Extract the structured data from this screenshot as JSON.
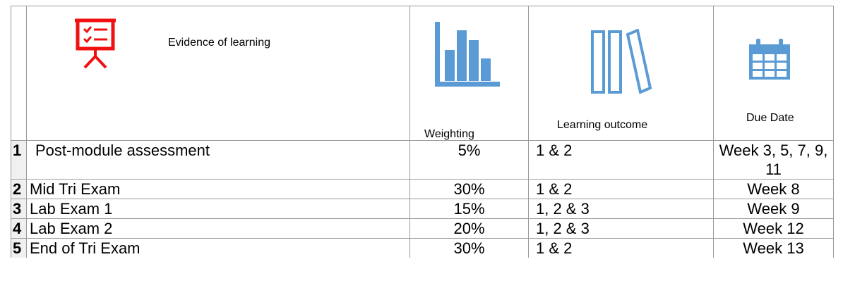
{
  "header": {
    "evidence": "Evidence of learning",
    "weighting": "Weighting",
    "learning_outcome": "Learning outcome",
    "due_date": "Due Date"
  },
  "table": {
    "rows": [
      [
        "1",
        "Post-module assessment",
        "5%",
        "1 & 2",
        "Week 3, 5, 7, 9, 11"
      ],
      [
        "2",
        "Mid Tri Exam",
        "30%",
        "1 & 2",
        "Week 8"
      ],
      [
        "3",
        "Lab Exam 1",
        "15%",
        "1, 2 & 3",
        "Week 9"
      ],
      [
        "4",
        "Lab Exam 2",
        "20%",
        "1, 2 & 3",
        "Week 12"
      ],
      [
        "5",
        "End of Tri Exam",
        "30%",
        "1 & 2",
        "Week 13"
      ]
    ]
  }
}
